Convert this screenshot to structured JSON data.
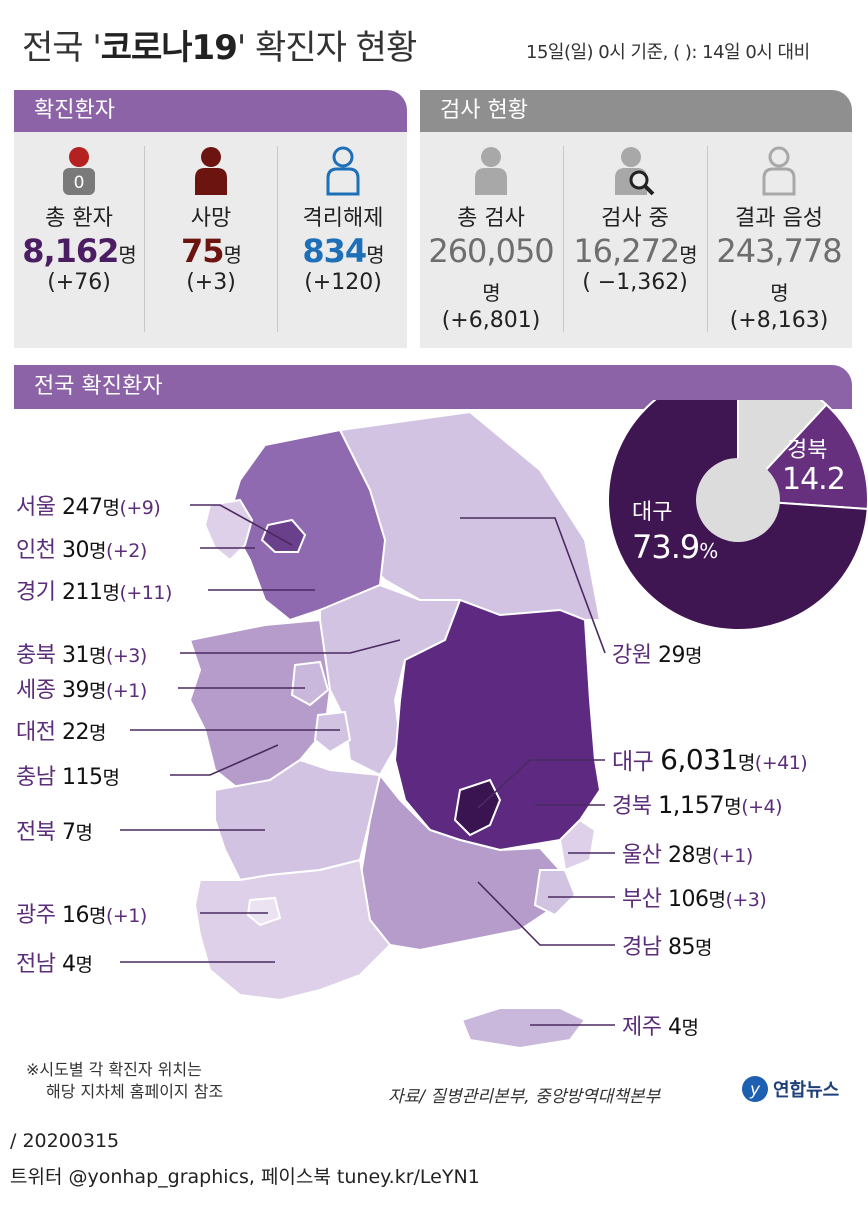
{
  "title": {
    "prefix": "전국 '",
    "highlight": "코로나19",
    "suffix": "' 확진자 현황",
    "sub": "15일(일) 0시 기준, (  ): 14일 0시 대비"
  },
  "confirmed_panel": {
    "header": "확진환자",
    "stats": [
      {
        "label": "총 환자",
        "value": "8,162",
        "unit": "명",
        "change": "(+76)",
        "color": "#4b1e63",
        "icon": "patient-icon",
        "badge": "0"
      },
      {
        "label": "사망",
        "value": "75",
        "unit": "명",
        "change": "(+3)",
        "color": "#6b1410",
        "icon": "death-person-icon"
      },
      {
        "label": "격리해제",
        "value": "834",
        "unit": "명",
        "change": "(+120)",
        "color": "#1d6fb8",
        "icon": "released-person-icon"
      }
    ]
  },
  "test_panel": {
    "header": "검사 현황",
    "stats": [
      {
        "label": "총 검사",
        "value": "260,050",
        "unit": "명",
        "change": "(+6,801)",
        "icon": "tested-person-icon"
      },
      {
        "label": "검사 중",
        "value": "16,272",
        "unit": "명",
        "change": "( −1,362)",
        "icon": "testing-magnifier-icon"
      },
      {
        "label": "결과 음성",
        "value": "243,778",
        "unit": "명",
        "change": "(+8,163)",
        "icon": "negative-person-icon"
      }
    ]
  },
  "map_section": {
    "header": "전국 확진환자",
    "regions": [
      {
        "name": "서울",
        "count": "247",
        "unit": "명",
        "change": "(+9)"
      },
      {
        "name": "인천",
        "count": "30",
        "unit": "명",
        "change": "(+2)"
      },
      {
        "name": "경기",
        "count": "211",
        "unit": "명",
        "change": "(+11)"
      },
      {
        "name": "충북",
        "count": "31",
        "unit": "명",
        "change": "(+3)"
      },
      {
        "name": "세종",
        "count": "39",
        "unit": "명",
        "change": "(+1)"
      },
      {
        "name": "대전",
        "count": "22",
        "unit": "명",
        "change": ""
      },
      {
        "name": "충남",
        "count": "115",
        "unit": "명",
        "change": ""
      },
      {
        "name": "전북",
        "count": "7",
        "unit": "명",
        "change": ""
      },
      {
        "name": "광주",
        "count": "16",
        "unit": "명",
        "change": "(+1)"
      },
      {
        "name": "전남",
        "count": "4",
        "unit": "명",
        "change": ""
      },
      {
        "name": "강원",
        "count": "29",
        "unit": "명",
        "change": ""
      },
      {
        "name": "대구",
        "count": "6,031",
        "unit": "명",
        "change": "(+41)"
      },
      {
        "name": "경북",
        "count": "1,157",
        "unit": "명",
        "change": "(+4)"
      },
      {
        "name": "울산",
        "count": "28",
        "unit": "명",
        "change": "(+1)"
      },
      {
        "name": "부산",
        "count": "106",
        "unit": "명",
        "change": "(+3)"
      },
      {
        "name": "경남",
        "count": "85",
        "unit": "명",
        "change": ""
      },
      {
        "name": "제주",
        "count": "4",
        "unit": "명",
        "change": ""
      }
    ]
  },
  "donut": {
    "daegu_label": "대구",
    "daegu_value": "73.9",
    "daegu_unit": "%",
    "gyeongbuk_label": "경북",
    "gyeongbuk_value": "14.2",
    "shares": {
      "daegu": 73.9,
      "gyeongbuk": 14.2,
      "other": 11.9
    },
    "colors": {
      "daegu": "#3f1651",
      "gyeongbuk": "#66307f",
      "other": "#dcdcdc"
    }
  },
  "notes": {
    "line1": "※시도별 각 확진자 위치는",
    "line2": "해당 지차체 홈페이지 참조",
    "source": "자료/ 질병관리본부, 중앙방역대책본부",
    "logo": "연합뉴스"
  },
  "footer": {
    "date": "/ 20200315",
    "social": "트위터 @yonhap_graphics, 페이스북 tuney.kr/LeYN1"
  },
  "colors": {
    "purple_header": "#8b63a6",
    "gray_header": "#8f8f8f",
    "map_dark": "#5e2a81",
    "map_mid": "#8f6ab0",
    "map_light": "#c9b8dc",
    "map_pale": "#ddd0e8"
  }
}
